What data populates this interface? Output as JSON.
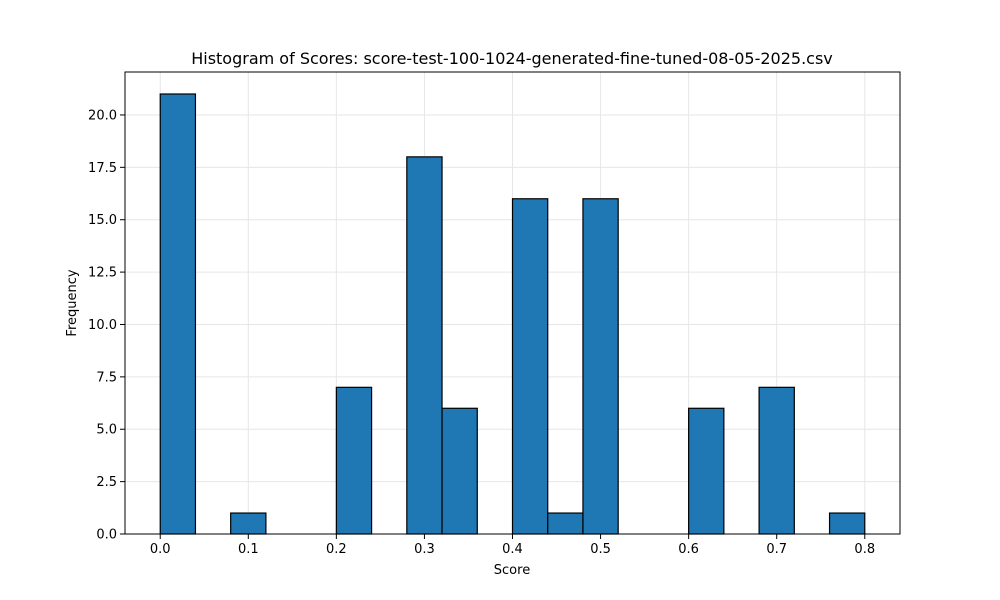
{
  "chart_data": {
    "type": "bar",
    "title": "Histogram of Scores: score-test-100-1024-generated-fine-tuned-08-05-2025.csv",
    "xlabel": "Score",
    "ylabel": "Frequency",
    "xlim": [
      -0.04,
      0.84
    ],
    "ylim": [
      0,
      22.05
    ],
    "grid": true,
    "bar_color": "#1f77b4",
    "edge_color": "#000000",
    "bin_width": 0.04,
    "bins": [
      {
        "x0": 0.0,
        "value": 21
      },
      {
        "x0": 0.08,
        "value": 1
      },
      {
        "x0": 0.2,
        "value": 7
      },
      {
        "x0": 0.28,
        "value": 18
      },
      {
        "x0": 0.32,
        "value": 6
      },
      {
        "x0": 0.4,
        "value": 16
      },
      {
        "x0": 0.44,
        "value": 1
      },
      {
        "x0": 0.48,
        "value": 16
      },
      {
        "x0": 0.6,
        "value": 6
      },
      {
        "x0": 0.68,
        "value": 7
      },
      {
        "x0": 0.76,
        "value": 1
      }
    ],
    "xticks": [
      0.0,
      0.1,
      0.2,
      0.3,
      0.4,
      0.5,
      0.6,
      0.7,
      0.8
    ],
    "xtick_labels": [
      "0.0",
      "0.1",
      "0.2",
      "0.3",
      "0.4",
      "0.5",
      "0.6",
      "0.7",
      "0.8"
    ],
    "yticks": [
      0,
      2.5,
      5,
      7.5,
      10,
      12.5,
      15,
      17.5,
      20
    ],
    "ytick_labels": [
      "0.0",
      "2.5",
      "5.0",
      "7.5",
      "10.0",
      "12.5",
      "15.0",
      "17.5",
      "20.0"
    ]
  }
}
